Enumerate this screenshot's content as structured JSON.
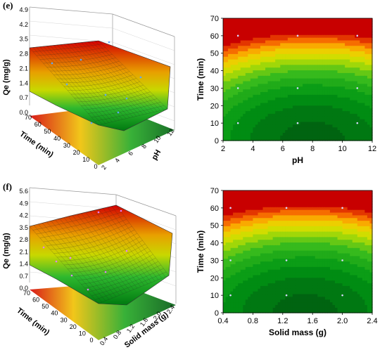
{
  "panels": [
    {
      "label": "(e)"
    },
    {
      "label": "(f)"
    }
  ],
  "colors": {
    "high": "#cc0000",
    "mid": "#f0e000",
    "low": "#00a000",
    "lowest": "#005a10",
    "points": "#5aa8ff",
    "points_f": "#e080ff"
  },
  "chart_data": [
    {
      "panel": "(e)",
      "type": "surface3d",
      "zlabel": "Qe (mg/g)",
      "xlabel": "pH",
      "ylabel": "Time (min)",
      "z_ticks": [
        "0.0",
        "0.7",
        "1.4",
        "2.1",
        "2.8",
        "3.5",
        "4.2",
        "4.9"
      ],
      "x_ticks": [
        "2",
        "4",
        "6",
        "8",
        "10",
        "12"
      ],
      "y_ticks": [
        "0",
        "10",
        "20",
        "30",
        "40",
        "50",
        "60",
        "70"
      ],
      "xlim": [
        2,
        12
      ],
      "ylim": [
        0,
        70
      ],
      "zlim": [
        0,
        4.9
      ]
    },
    {
      "panel": "(e)",
      "type": "heatmap",
      "xlabel": "pH",
      "ylabel": "Time (min)",
      "x_ticks": [
        2,
        4,
        6,
        8,
        10,
        12
      ],
      "y_ticks": [
        0,
        10,
        20,
        30,
        40,
        50,
        60,
        70
      ],
      "xlim": [
        2,
        12
      ],
      "ylim": [
        0,
        70
      ],
      "optimum_x": 8,
      "points": [
        {
          "x": 3,
          "y": 10
        },
        {
          "x": 7,
          "y": 10
        },
        {
          "x": 11,
          "y": 10
        },
        {
          "x": 3,
          "y": 30
        },
        {
          "x": 7,
          "y": 30
        },
        {
          "x": 11,
          "y": 30
        },
        {
          "x": 3,
          "y": 60
        },
        {
          "x": 7,
          "y": 60
        },
        {
          "x": 11,
          "y": 60
        }
      ]
    },
    {
      "panel": "(f)",
      "type": "surface3d",
      "zlabel": "Qe (mg/g)",
      "xlabel": "Solid mass (g)",
      "ylabel": "Time (min)",
      "z_ticks": [
        "0.0",
        "0.7",
        "1.4",
        "2.1",
        "2.8",
        "3.5",
        "4.2",
        "4.9",
        "5.6"
      ],
      "x_ticks": [
        "0.4",
        "0.8",
        "1.2",
        "1.6",
        "2.0",
        "2.4"
      ],
      "y_ticks": [
        "0",
        "10",
        "20",
        "30",
        "40",
        "50",
        "60",
        "70"
      ],
      "xlim": [
        0.4,
        2.4
      ],
      "ylim": [
        0,
        70
      ],
      "zlim": [
        0,
        5.6
      ]
    },
    {
      "panel": "(f)",
      "type": "heatmap",
      "xlabel": "Solid mass (g)",
      "ylabel": "Time (min)",
      "x_ticks": [
        "0.4",
        "0.8",
        "1.2",
        "1.6",
        "2.0",
        "2.4"
      ],
      "y_ticks": [
        0,
        10,
        20,
        30,
        40,
        50,
        60,
        70
      ],
      "xlim": [
        0.4,
        2.4
      ],
      "ylim": [
        0,
        70
      ],
      "optimum_x": 1.5,
      "points": [
        {
          "x": 0.5,
          "y": 10
        },
        {
          "x": 1.25,
          "y": 10
        },
        {
          "x": 2.0,
          "y": 10
        },
        {
          "x": 0.5,
          "y": 30
        },
        {
          "x": 1.25,
          "y": 30
        },
        {
          "x": 2.0,
          "y": 30
        },
        {
          "x": 0.5,
          "y": 60
        },
        {
          "x": 1.25,
          "y": 60
        },
        {
          "x": 2.0,
          "y": 60
        }
      ]
    }
  ]
}
